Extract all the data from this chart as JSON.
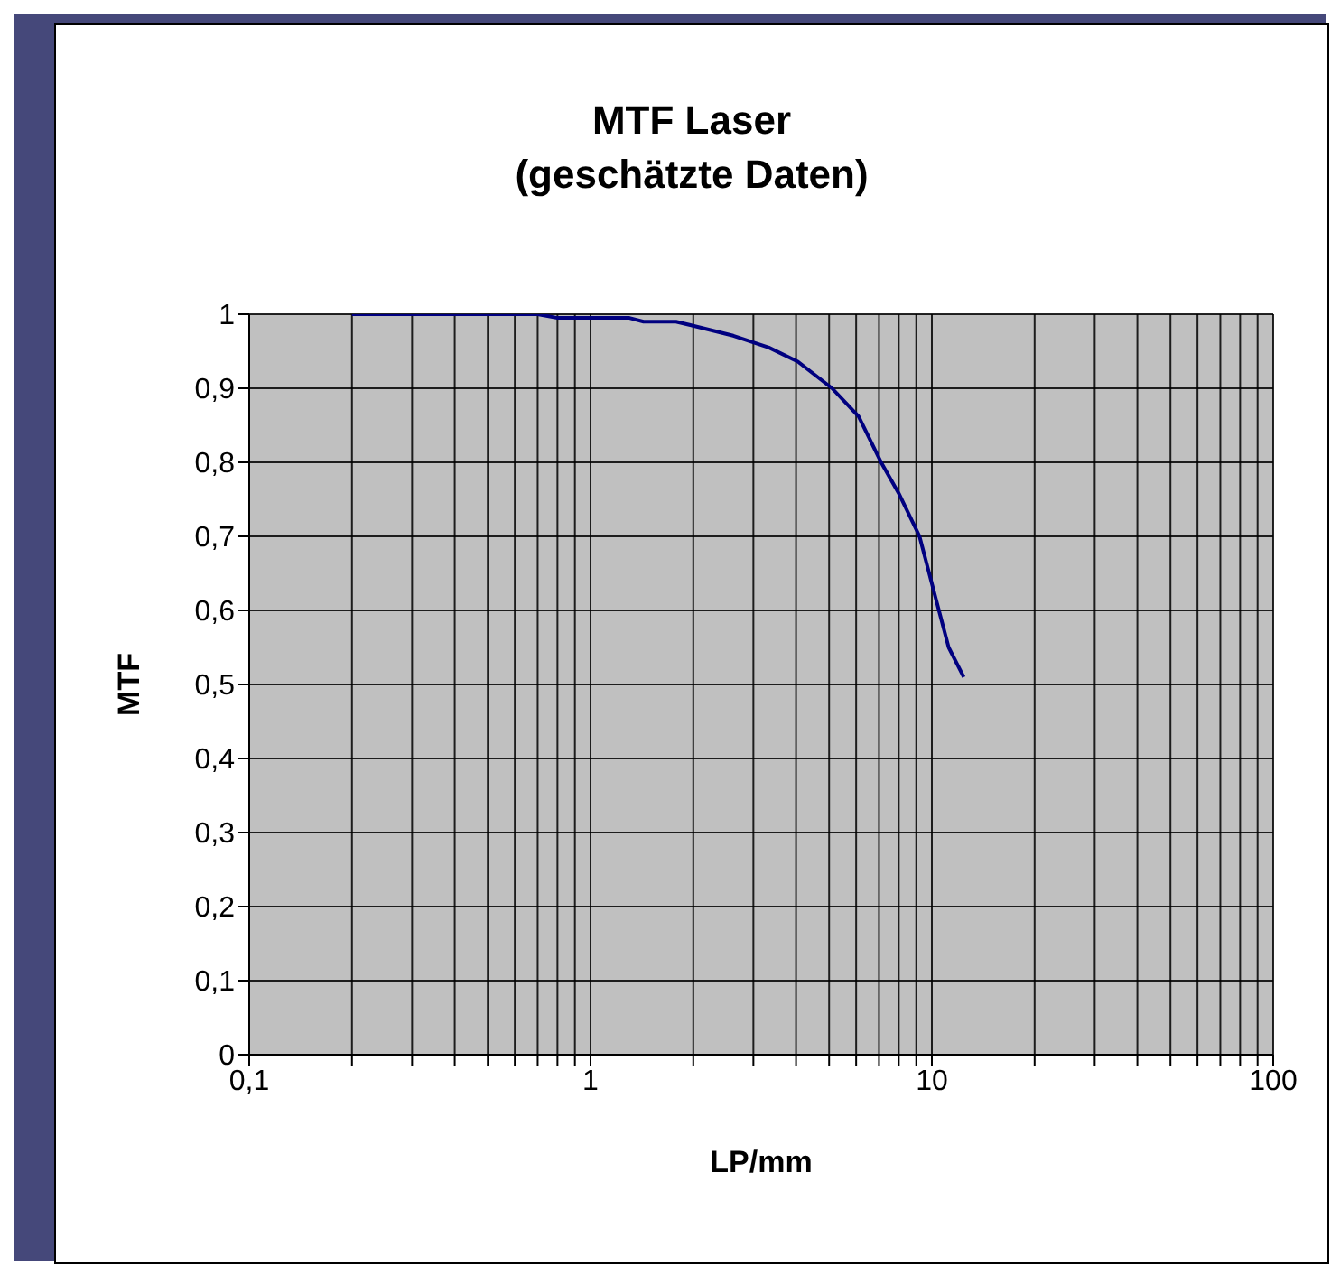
{
  "chart_data": {
    "type": "line",
    "title": "MTF Laser",
    "subtitle": "(geschätzte Daten)",
    "xlabel": "LP/mm",
    "ylabel": "MTF",
    "log": "x",
    "grid": true,
    "marker": "none",
    "line_style": "solid",
    "xlim": [
      0.1,
      100
    ],
    "xticks": [
      {
        "value": 0.1,
        "label": "0,1"
      },
      {
        "value": 0.2,
        "label": null
      },
      {
        "value": 0.3,
        "label": null
      },
      {
        "value": 0.4,
        "label": null
      },
      {
        "value": 0.5,
        "label": null
      },
      {
        "value": 0.6,
        "label": null
      },
      {
        "value": 0.7,
        "label": null
      },
      {
        "value": 0.8,
        "label": null
      },
      {
        "value": 0.9,
        "label": null
      },
      1,
      {
        "value": 2,
        "label": null
      },
      {
        "value": 3,
        "label": null
      },
      {
        "value": 4,
        "label": null
      },
      {
        "value": 5,
        "label": null
      },
      {
        "value": 6,
        "label": null
      },
      {
        "value": 7,
        "label": null
      },
      {
        "value": 8,
        "label": null
      },
      {
        "value": 9,
        "label": null
      },
      10,
      {
        "value": 20,
        "label": null
      },
      {
        "value": 30,
        "label": null
      },
      {
        "value": 40,
        "label": null
      },
      {
        "value": 50,
        "label": null
      },
      {
        "value": 60,
        "label": null
      },
      {
        "value": 70,
        "label": null
      },
      {
        "value": 80,
        "label": null
      },
      {
        "value": 90,
        "label": null
      },
      100
    ],
    "ylim": [
      0,
      1
    ],
    "yticks": [
      0,
      {
        "value": 0.1,
        "label": "0,1"
      },
      {
        "value": 0.2,
        "label": "0,2"
      },
      {
        "value": 0.3,
        "label": "0,3"
      },
      {
        "value": 0.4,
        "label": "0,4"
      },
      {
        "value": 0.5,
        "label": "0,5"
      },
      {
        "value": 0.6,
        "label": "0,6"
      },
      {
        "value": 0.7,
        "label": "0,7"
      },
      {
        "value": 0.8,
        "label": "0,8"
      },
      {
        "value": 0.9,
        "label": "0,9"
      },
      1
    ],
    "x": [
      0.2,
      0.7,
      0.8,
      1.3,
      1.43,
      1.78,
      2.06,
      2.62,
      3.33,
      4.05,
      5.1,
      6.1,
      7.1,
      8.0,
      9.2,
      10.2,
      11.2,
      12.4
    ],
    "series": [
      {
        "color": "#000080",
        "values": [
          1,
          1,
          0.995,
          0.995,
          0.99,
          0.99,
          0.983,
          0.971,
          0.955,
          0.936,
          0.9,
          0.862,
          0.8,
          0.758,
          0.7,
          0.621,
          0.55,
          0.51
        ]
      }
    ]
  }
}
